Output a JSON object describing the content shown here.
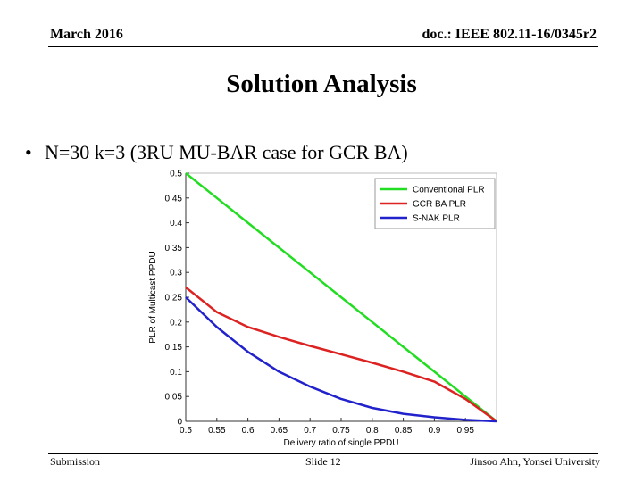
{
  "header": {
    "date": "March 2016",
    "doc": "doc.: IEEE 802.11-16/0345r2"
  },
  "title": "Solution Analysis",
  "bullet": {
    "symbol": "•",
    "text": "N=30 k=3 (3RU MU-BAR case for GCR BA)"
  },
  "footer": {
    "left": "Submission",
    "center": "Slide 12",
    "right": "Jinsoo Ahn, Yonsei University"
  },
  "chart_data": {
    "type": "line",
    "xlabel": "Delivery ratio of single PPDU",
    "ylabel": "PLR of Multicast PPDU",
    "xlim": [
      0.5,
      1.0
    ],
    "ylim": [
      0,
      0.5
    ],
    "xticks": [
      "0.5",
      "0.55",
      "0.6",
      "0.65",
      "0.7",
      "0.75",
      "0.8",
      "0.85",
      "0.9",
      "0.95"
    ],
    "yticks": [
      "0",
      "0.05",
      "0.1",
      "0.15",
      "0.2",
      "0.25",
      "0.3",
      "0.35",
      "0.4",
      "0.45",
      "0.5"
    ],
    "legend_position": "top-right",
    "series": [
      {
        "name": "Conventional PLR",
        "color": "#22dd22",
        "x": [
          0.5,
          0.55,
          0.6,
          0.65,
          0.7,
          0.75,
          0.8,
          0.85,
          0.9,
          0.95,
          1.0
        ],
        "y": [
          0.5,
          0.45,
          0.4,
          0.35,
          0.3,
          0.25,
          0.2,
          0.15,
          0.1,
          0.05,
          0.0
        ]
      },
      {
        "name": "GCR BA PLR",
        "color": "#dd2222",
        "x": [
          0.5,
          0.55,
          0.6,
          0.65,
          0.7,
          0.75,
          0.8,
          0.85,
          0.9,
          0.95,
          1.0
        ],
        "y": [
          0.27,
          0.22,
          0.19,
          0.17,
          0.152,
          0.135,
          0.118,
          0.1,
          0.08,
          0.045,
          0.0
        ]
      },
      {
        "name": "S-NAK PLR",
        "color": "#2222cc",
        "x": [
          0.5,
          0.55,
          0.6,
          0.65,
          0.7,
          0.75,
          0.8,
          0.85,
          0.9,
          0.95,
          1.0
        ],
        "y": [
          0.25,
          0.19,
          0.14,
          0.1,
          0.07,
          0.045,
          0.027,
          0.015,
          0.008,
          0.003,
          0.0
        ]
      }
    ]
  }
}
